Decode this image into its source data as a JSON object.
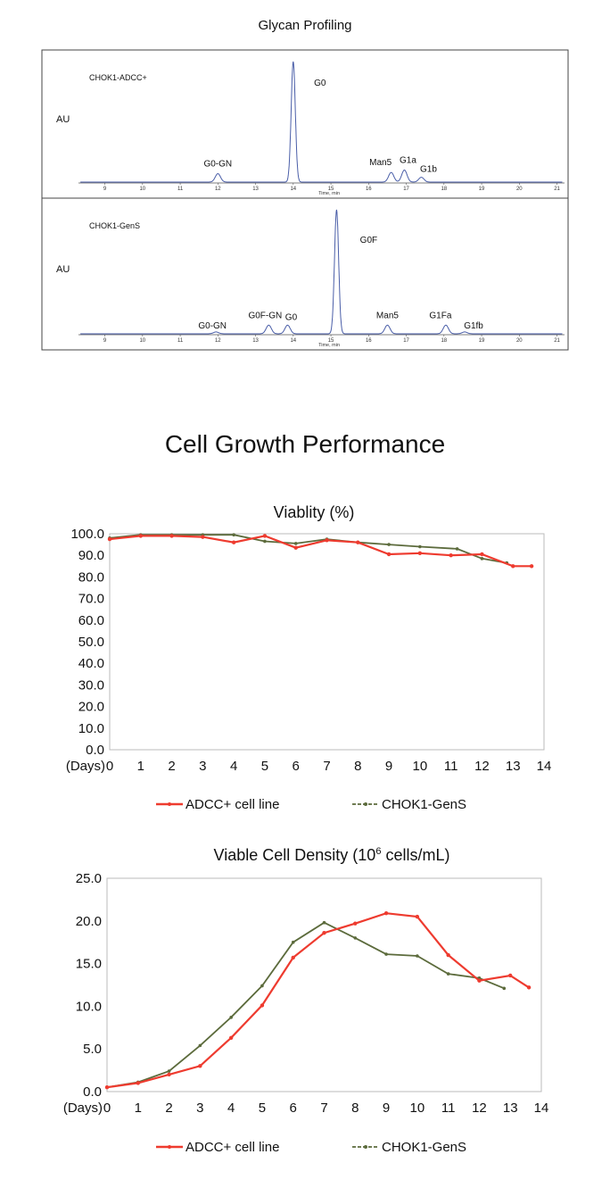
{
  "glycan": {
    "title": "Glycan Profiling",
    "time_label": "Time, min",
    "x_ticks": [
      9,
      10,
      11,
      12,
      13,
      14,
      15,
      16,
      17,
      18,
      19,
      20,
      21
    ],
    "panels": [
      {
        "sample": "CHOK1-ADCC+",
        "ylabel": "AU",
        "peaks": [
          {
            "label": "G0-GN",
            "time": 12.0,
            "height": 0.07
          },
          {
            "label": "G0",
            "time": 14.0,
            "height": 1.0
          },
          {
            "label": "Man5",
            "time": 16.6,
            "height": 0.08
          },
          {
            "label": "G1a",
            "time": 16.95,
            "height": 0.1
          },
          {
            "label": "G1b",
            "time": 17.4,
            "height": 0.04
          }
        ]
      },
      {
        "sample": "CHOK1-GenS",
        "ylabel": "AU",
        "peaks": [
          {
            "label": "G0-GN",
            "time": 11.95,
            "height": 0.015
          },
          {
            "label": "G0F-GN",
            "time": 13.35,
            "height": 0.07
          },
          {
            "label": "G0",
            "time": 13.85,
            "height": 0.07
          },
          {
            "label": "G0F",
            "time": 15.15,
            "height": 1.0
          },
          {
            "label": "Man5",
            "time": 16.5,
            "height": 0.07
          },
          {
            "label": "G1Fa",
            "time": 18.05,
            "height": 0.07
          },
          {
            "label": "G1fb",
            "time": 18.55,
            "height": 0.015
          }
        ]
      }
    ]
  },
  "section_title": "Cell Growth Performance",
  "chart_data": [
    {
      "type": "line",
      "title": "Viablity (%)",
      "xlabel": "(Days)",
      "ylim": [
        0,
        100
      ],
      "xlim": [
        0,
        14
      ],
      "y_ticks": [
        "0.0",
        "10.0",
        "20.0",
        "30.0",
        "40.0",
        "50.0",
        "60.0",
        "70.0",
        "80.0",
        "90.0",
        "100.0"
      ],
      "x_ticks": [
        "0",
        "1",
        "2",
        "3",
        "4",
        "5",
        "6",
        "7",
        "8",
        "9",
        "10",
        "11",
        "12",
        "13",
        "14"
      ],
      "grid": false,
      "legend": "bottom",
      "series": [
        {
          "name": "ADCC+ cell line",
          "color": "#ee3b2f",
          "x": [
            0,
            1,
            2,
            3,
            4,
            5,
            6,
            7,
            8,
            9,
            10,
            11,
            12,
            13,
            13.6
          ],
          "y": [
            97.5,
            99,
            99,
            98.5,
            96,
            99,
            93.5,
            97,
            96,
            90.5,
            91,
            90,
            90.5,
            85,
            85
          ]
        },
        {
          "name": "CHOK1-GenS",
          "color": "#5c6b3c",
          "x": [
            0,
            1,
            2,
            3,
            4,
            5,
            6,
            7,
            8,
            9,
            10,
            11.2,
            12,
            12.8
          ],
          "y": [
            98,
            99.5,
            99.5,
            99.5,
            99.5,
            96.5,
            95.5,
            97.5,
            96,
            95,
            94,
            93,
            88.5,
            86.5
          ]
        }
      ]
    },
    {
      "type": "line",
      "title": "Viable Cell Density (10",
      "title_sup": "6",
      "title_rest": " cells/mL)",
      "xlabel": "(Days)",
      "ylim": [
        0,
        25
      ],
      "xlim": [
        0,
        14
      ],
      "y_ticks": [
        "0.0",
        "5.0",
        "10.0",
        "15.0",
        "20.0",
        "25.0"
      ],
      "x_ticks": [
        "0",
        "1",
        "2",
        "3",
        "4",
        "5",
        "6",
        "7",
        "8",
        "9",
        "10",
        "11",
        "12",
        "13",
        "14"
      ],
      "grid": false,
      "legend": "bottom",
      "series": [
        {
          "name": "ADCC+ cell line",
          "color": "#ee3b2f",
          "x": [
            0,
            1,
            2,
            3,
            4,
            5,
            6,
            7,
            8,
            9,
            10,
            11,
            12,
            13,
            13.6
          ],
          "y": [
            0.5,
            1.0,
            2.0,
            3.0,
            6.3,
            10.1,
            15.7,
            18.6,
            19.7,
            20.9,
            20.5,
            16.0,
            13.0,
            13.6,
            12.2
          ]
        },
        {
          "name": "CHOK1-GenS",
          "color": "#5c6b3c",
          "x": [
            0,
            1,
            2,
            3,
            4,
            5,
            6,
            7,
            8,
            9,
            10,
            11,
            12,
            12.8
          ],
          "y": [
            0.5,
            1.1,
            2.4,
            5.4,
            8.7,
            12.4,
            17.5,
            19.8,
            18.0,
            16.1,
            15.9,
            13.8,
            13.3,
            12.1
          ]
        }
      ]
    }
  ]
}
